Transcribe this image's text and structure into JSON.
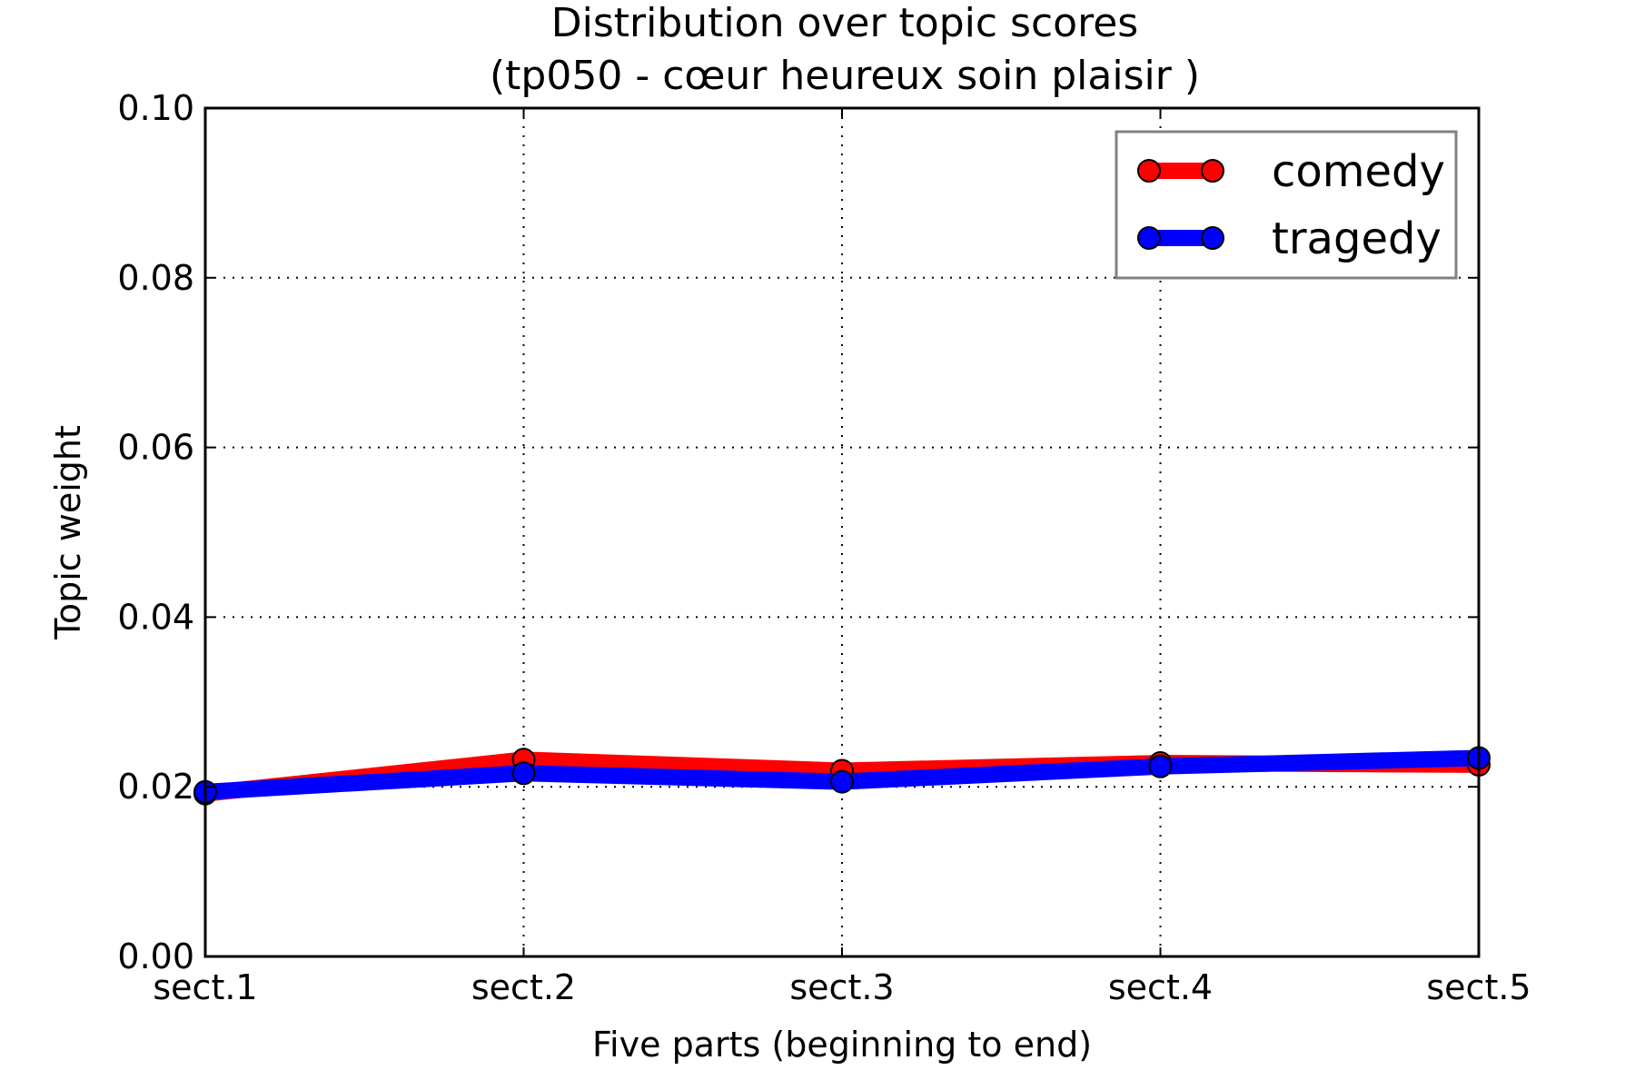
{
  "chart_data": {
    "type": "line",
    "title": [
      "Distribution over topic scores",
      "(tp050 - cœur heureux soin plaisir )"
    ],
    "xlabel": "Five parts (beginning to end)",
    "ylabel": "Topic weight",
    "categories": [
      "sect.1",
      "sect.2",
      "sect.3",
      "sect.4",
      "sect.5"
    ],
    "ylim": [
      0,
      0.1
    ],
    "yticks": [
      "0.00",
      "0.02",
      "0.04",
      "0.06",
      "0.08",
      "0.10"
    ],
    "grid": true,
    "legend_position": "top-right",
    "series": [
      {
        "name": "comedy",
        "color": "#ff0000",
        "values": [
          0.0192,
          0.0232,
          0.0219,
          0.0228,
          0.0226
        ]
      },
      {
        "name": "tragedy",
        "color": "#0000ff",
        "values": [
          0.0194,
          0.0216,
          0.0206,
          0.0224,
          0.0234
        ]
      }
    ]
  }
}
